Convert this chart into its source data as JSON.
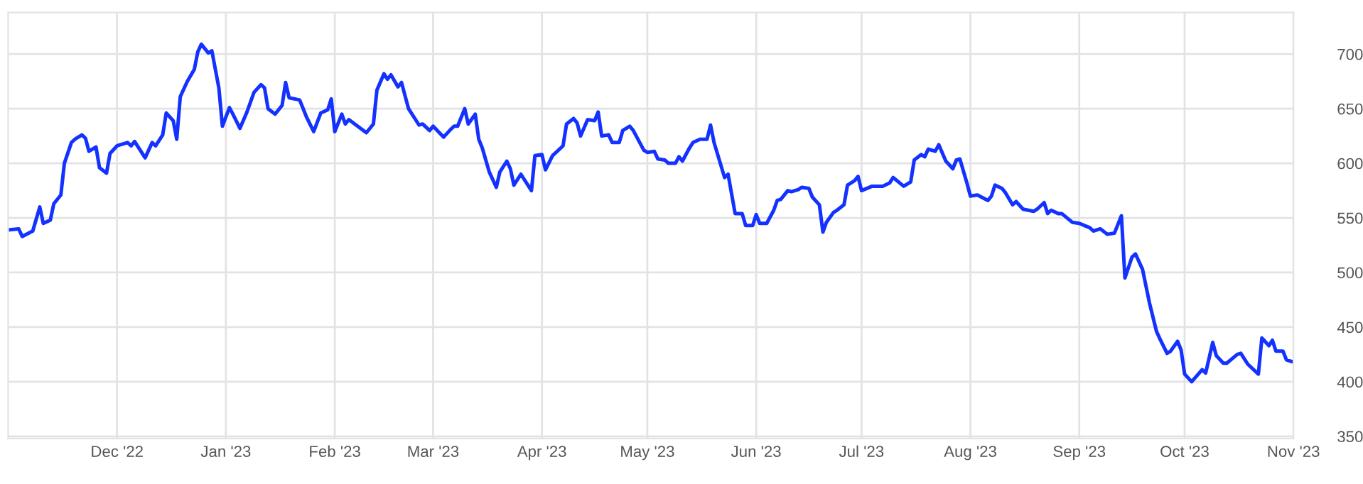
{
  "chart_data": {
    "type": "line",
    "x": [
      "2022-10-31",
      "2022-11-03",
      "2022-11-04",
      "2022-11-07",
      "2022-11-09",
      "2022-11-10",
      "2022-11-12",
      "2022-11-13",
      "2022-11-15",
      "2022-11-16",
      "2022-11-18",
      "2022-11-19",
      "2022-11-21",
      "2022-11-22",
      "2022-11-23",
      "2022-11-25",
      "2022-11-26",
      "2022-11-28",
      "2022-11-29",
      "2022-12-01",
      "2022-12-02",
      "2022-12-04",
      "2022-12-05",
      "2022-12-06",
      "2022-12-09",
      "2022-12-11",
      "2022-12-12",
      "2022-12-14",
      "2022-12-15",
      "2022-12-17",
      "2022-12-18",
      "2022-12-19",
      "2022-12-21",
      "2022-12-23",
      "2022-12-24",
      "2022-12-25",
      "2022-12-27",
      "2022-12-28",
      "2022-12-30",
      "2022-12-31",
      "2023-01-02",
      "2023-01-03",
      "2023-01-05",
      "2023-01-07",
      "2023-01-09",
      "2023-01-11",
      "2023-01-12",
      "2023-01-13",
      "2023-01-15",
      "2023-01-17",
      "2023-01-18",
      "2023-01-19",
      "2023-01-22",
      "2023-01-24",
      "2023-01-26",
      "2023-01-28",
      "2023-01-30",
      "2023-01-31",
      "2023-02-01",
      "2023-02-03",
      "2023-02-04",
      "2023-02-05",
      "2023-02-10",
      "2023-02-12",
      "2023-02-13",
      "2023-02-15",
      "2023-02-16",
      "2023-02-17",
      "2023-02-19",
      "2023-02-20",
      "2023-02-22",
      "2023-02-25",
      "2023-02-26",
      "2023-02-28",
      "2023-03-01",
      "2023-03-04",
      "2023-03-06",
      "2023-03-07",
      "2023-03-08",
      "2023-03-10",
      "2023-03-11",
      "2023-03-13",
      "2023-03-14",
      "2023-03-15",
      "2023-03-17",
      "2023-03-19",
      "2023-03-20",
      "2023-03-22",
      "2023-03-23",
      "2023-03-24",
      "2023-03-26",
      "2023-03-28",
      "2023-03-29",
      "2023-03-30",
      "2023-04-01",
      "2023-04-02",
      "2023-04-04",
      "2023-04-07",
      "2023-04-08",
      "2023-04-10",
      "2023-04-11",
      "2023-04-12",
      "2023-04-14",
      "2023-04-16",
      "2023-04-17",
      "2023-04-18",
      "2023-04-20",
      "2023-04-21",
      "2023-04-23",
      "2023-04-24",
      "2023-04-26",
      "2023-04-27",
      "2023-04-30",
      "2023-05-01",
      "2023-05-03",
      "2023-05-04",
      "2023-05-06",
      "2023-05-07",
      "2023-05-09",
      "2023-05-10",
      "2023-05-11",
      "2023-05-13",
      "2023-05-14",
      "2023-05-16",
      "2023-05-18",
      "2023-05-19",
      "2023-05-20",
      "2023-05-23",
      "2023-05-24",
      "2023-05-26",
      "2023-05-28",
      "2023-05-29",
      "2023-05-31",
      "2023-06-01",
      "2023-06-02",
      "2023-06-04",
      "2023-06-06",
      "2023-06-07",
      "2023-06-08",
      "2023-06-10",
      "2023-06-11",
      "2023-06-13",
      "2023-06-14",
      "2023-06-16",
      "2023-06-17",
      "2023-06-19",
      "2023-06-20",
      "2023-06-21",
      "2023-06-23",
      "2023-06-24",
      "2023-06-26",
      "2023-06-27",
      "2023-06-29",
      "2023-06-30",
      "2023-07-01",
      "2023-07-04",
      "2023-07-07",
      "2023-07-09",
      "2023-07-10",
      "2023-07-13",
      "2023-07-15",
      "2023-07-16",
      "2023-07-18",
      "2023-07-19",
      "2023-07-20",
      "2023-07-22",
      "2023-07-23",
      "2023-07-25",
      "2023-07-27",
      "2023-07-28",
      "2023-07-29",
      "2023-07-31",
      "2023-08-01",
      "2023-08-03",
      "2023-08-06",
      "2023-08-07",
      "2023-08-08",
      "2023-08-10",
      "2023-08-11",
      "2023-08-13",
      "2023-08-14",
      "2023-08-16",
      "2023-08-19",
      "2023-08-20",
      "2023-08-22",
      "2023-08-23",
      "2023-08-24",
      "2023-08-26",
      "2023-08-27",
      "2023-08-30",
      "2023-09-01",
      "2023-09-04",
      "2023-09-05",
      "2023-09-07",
      "2023-09-09",
      "2023-09-11",
      "2023-09-13",
      "2023-09-14",
      "2023-09-16",
      "2023-09-17",
      "2023-09-19",
      "2023-09-21",
      "2023-09-23",
      "2023-09-24",
      "2023-09-26",
      "2023-09-27",
      "2023-09-29",
      "2023-09-30",
      "2023-10-01",
      "2023-10-03",
      "2023-10-06",
      "2023-10-07",
      "2023-10-09",
      "2023-10-10",
      "2023-10-12",
      "2023-10-13",
      "2023-10-16",
      "2023-10-17",
      "2023-10-19",
      "2023-10-22",
      "2023-10-23",
      "2023-10-25",
      "2023-10-26",
      "2023-10-27",
      "2023-10-29",
      "2023-10-30",
      "2023-11-01"
    ],
    "series": [
      {
        "color": "#1432ff",
        "values": [
          539,
          540,
          533,
          538,
          560,
          545,
          548,
          563,
          571,
          600,
          619,
          622,
          626,
          623,
          611,
          615,
          596,
          591,
          609,
          616,
          617,
          619,
          616,
          620,
          605,
          619,
          616,
          626,
          646,
          639,
          622,
          661,
          675,
          686,
          702,
          709,
          701,
          703,
          669,
          634,
          651,
          645,
          632,
          647,
          665,
          672,
          669,
          650,
          645,
          653,
          674,
          660,
          658,
          642,
          629,
          646,
          649,
          659,
          629,
          645,
          636,
          640,
          628,
          636,
          667,
          682,
          677,
          681,
          670,
          674,
          650,
          635,
          636,
          630,
          634,
          624,
          631,
          634,
          634,
          650,
          636,
          645,
          622,
          614,
          592,
          578,
          592,
          602,
          595,
          580,
          590,
          580,
          575,
          607,
          608,
          594,
          607,
          616,
          636,
          641,
          637,
          625,
          640,
          639,
          647,
          625,
          626,
          619,
          619,
          630,
          634,
          630,
          612,
          610,
          611,
          604,
          603,
          600,
          600,
          606,
          602,
          614,
          619,
          622,
          622,
          635,
          619,
          587,
          590,
          554,
          554,
          543,
          543,
          553,
          545,
          545,
          557,
          566,
          567,
          575,
          574,
          576,
          578,
          577,
          569,
          562,
          537,
          546,
          555,
          557,
          562,
          580,
          584,
          588,
          575,
          579,
          579,
          582,
          587,
          579,
          583,
          603,
          608,
          606,
          613,
          611,
          617,
          602,
          595,
          603,
          604,
          582,
          570,
          571,
          566,
          570,
          580,
          577,
          573,
          562,
          565,
          558,
          556,
          558,
          564,
          554,
          557,
          554,
          554,
          546,
          545,
          541,
          538,
          540,
          535,
          536,
          552,
          495,
          514,
          517,
          503,
          472,
          446,
          439,
          426,
          428,
          437,
          429,
          407,
          400,
          411,
          408,
          436,
          424,
          417,
          417,
          425,
          426,
          416,
          407,
          440,
          433,
          438,
          428,
          428,
          420,
          418
        ]
      }
    ],
    "xlim": [
      "2022-10-31",
      "2023-11-01"
    ],
    "xticks": [
      {
        "value": "2022-12-01",
        "label": "Dec '22"
      },
      {
        "value": "2023-01-01",
        "label": "Jan '23"
      },
      {
        "value": "2023-02-01",
        "label": "Feb '23"
      },
      {
        "value": "2023-03-01",
        "label": "Mar '23"
      },
      {
        "value": "2023-04-01",
        "label": "Apr '23"
      },
      {
        "value": "2023-05-01",
        "label": "May '23"
      },
      {
        "value": "2023-06-01",
        "label": "Jun '23"
      },
      {
        "value": "2023-07-01",
        "label": "Jul '23"
      },
      {
        "value": "2023-08-01",
        "label": "Aug '23"
      },
      {
        "value": "2023-09-01",
        "label": "Sep '23"
      },
      {
        "value": "2023-10-01",
        "label": "Oct '23"
      },
      {
        "value": "2023-11-01",
        "label": "Nov '23"
      }
    ],
    "ylim": [
      348,
      738
    ],
    "yticks": [
      350,
      400,
      450,
      500,
      550,
      600,
      650,
      700
    ],
    "grid": true
  }
}
